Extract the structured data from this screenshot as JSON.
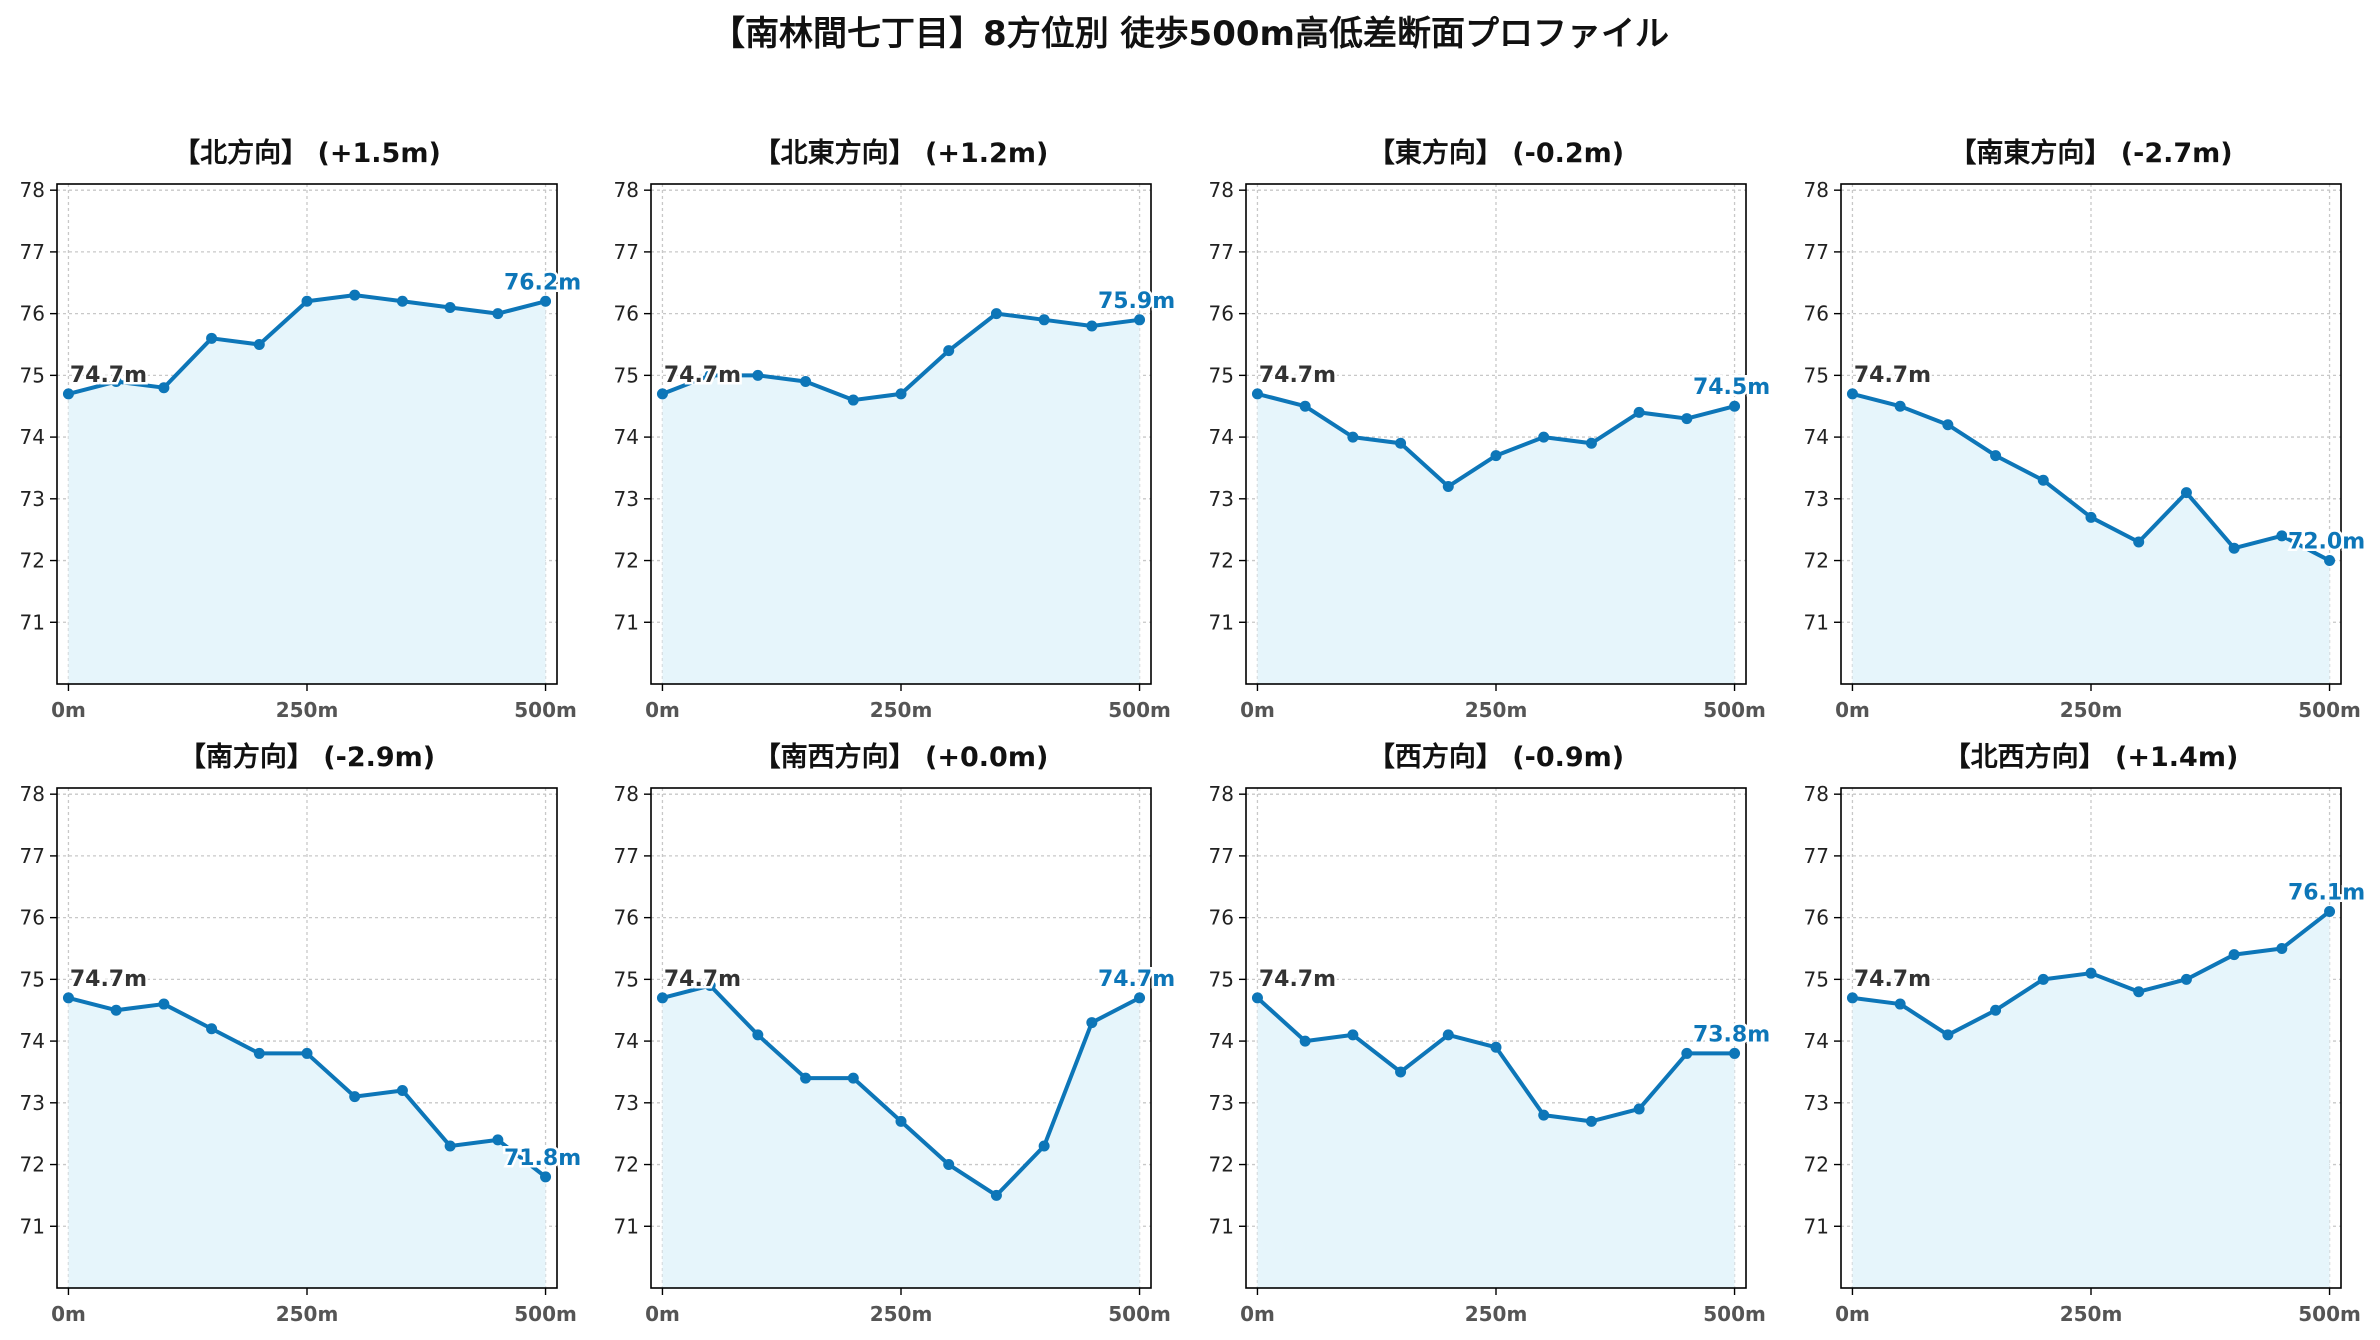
{
  "suptitle": "【南林間七丁目】8方位別 徒歩500m高低差断面プロファイル",
  "colors": {
    "line": "#0d76b8",
    "fill": "#e6f5fb",
    "grid": "#c8c8c8",
    "axis": "#000000",
    "tick_label": "#555555",
    "start_label": "#333333"
  },
  "chart_data": [
    {
      "type": "area",
      "title": "【北方向】 (+1.5m)",
      "x_ticks": [
        "0m",
        "250m",
        "500m"
      ],
      "y_ticks": [
        71,
        72,
        73,
        74,
        75,
        76,
        77,
        78
      ],
      "xlim": [
        -12,
        512
      ],
      "ylim": [
        70.0,
        78.1
      ],
      "grid": true,
      "x": [
        0,
        50,
        100,
        150,
        200,
        250,
        300,
        350,
        400,
        450,
        500
      ],
      "series": [
        {
          "values": [
            74.7,
            74.9,
            74.8,
            75.6,
            75.5,
            76.2,
            76.3,
            76.2,
            76.1,
            76.0,
            76.2
          ]
        }
      ],
      "start_label": "74.7m",
      "end_label": "76.2m"
    },
    {
      "type": "area",
      "title": "【北東方向】 (+1.2m)",
      "x_ticks": [
        "0m",
        "250m",
        "500m"
      ],
      "y_ticks": [
        71,
        72,
        73,
        74,
        75,
        76,
        77,
        78
      ],
      "xlim": [
        -12,
        512
      ],
      "ylim": [
        70.0,
        78.1
      ],
      "grid": true,
      "x": [
        0,
        50,
        100,
        150,
        200,
        250,
        300,
        350,
        400,
        450,
        500
      ],
      "series": [
        {
          "values": [
            74.7,
            75.0,
            75.0,
            74.9,
            74.6,
            74.7,
            75.4,
            76.0,
            75.9,
            75.8,
            75.9
          ]
        }
      ],
      "start_label": "74.7m",
      "end_label": "75.9m"
    },
    {
      "type": "area",
      "title": "【東方向】 (-0.2m)",
      "x_ticks": [
        "0m",
        "250m",
        "500m"
      ],
      "y_ticks": [
        71,
        72,
        73,
        74,
        75,
        76,
        77,
        78
      ],
      "xlim": [
        -12,
        512
      ],
      "ylim": [
        70.0,
        78.1
      ],
      "grid": true,
      "x": [
        0,
        50,
        100,
        150,
        200,
        250,
        300,
        350,
        400,
        450,
        500
      ],
      "series": [
        {
          "values": [
            74.7,
            74.5,
            74.0,
            73.9,
            73.2,
            73.7,
            74.0,
            73.9,
            74.4,
            74.3,
            74.5
          ]
        }
      ],
      "start_label": "74.7m",
      "end_label": "74.5m"
    },
    {
      "type": "area",
      "title": "【南東方向】 (-2.7m)",
      "x_ticks": [
        "0m",
        "250m",
        "500m"
      ],
      "y_ticks": [
        71,
        72,
        73,
        74,
        75,
        76,
        77,
        78
      ],
      "xlim": [
        -12,
        512
      ],
      "ylim": [
        70.0,
        78.1
      ],
      "grid": true,
      "x": [
        0,
        50,
        100,
        150,
        200,
        250,
        300,
        350,
        400,
        450,
        500
      ],
      "series": [
        {
          "values": [
            74.7,
            74.5,
            74.2,
            73.7,
            73.3,
            72.7,
            72.3,
            73.1,
            72.2,
            72.4,
            72.0
          ]
        }
      ],
      "start_label": "74.7m",
      "end_label": "72.0m"
    },
    {
      "type": "area",
      "title": "【南方向】 (-2.9m)",
      "x_ticks": [
        "0m",
        "250m",
        "500m"
      ],
      "y_ticks": [
        71,
        72,
        73,
        74,
        75,
        76,
        77,
        78
      ],
      "xlim": [
        -12,
        512
      ],
      "ylim": [
        70.0,
        78.1
      ],
      "grid": true,
      "x": [
        0,
        50,
        100,
        150,
        200,
        250,
        300,
        350,
        400,
        450,
        500
      ],
      "series": [
        {
          "values": [
            74.7,
            74.5,
            74.6,
            74.2,
            73.8,
            73.8,
            73.1,
            73.2,
            72.3,
            72.4,
            71.8
          ]
        }
      ],
      "start_label": "74.7m",
      "end_label": "71.8m"
    },
    {
      "type": "area",
      "title": "【南西方向】 (+0.0m)",
      "x_ticks": [
        "0m",
        "250m",
        "500m"
      ],
      "y_ticks": [
        71,
        72,
        73,
        74,
        75,
        76,
        77,
        78
      ],
      "xlim": [
        -12,
        512
      ],
      "ylim": [
        70.0,
        78.1
      ],
      "grid": true,
      "x": [
        0,
        50,
        100,
        150,
        200,
        250,
        300,
        350,
        400,
        450,
        500
      ],
      "series": [
        {
          "values": [
            74.7,
            74.9,
            74.1,
            73.4,
            73.4,
            72.7,
            72.0,
            71.5,
            72.3,
            74.3,
            74.7
          ]
        }
      ],
      "start_label": "74.7m",
      "end_label": "74.7m"
    },
    {
      "type": "area",
      "title": "【西方向】 (-0.9m)",
      "x_ticks": [
        "0m",
        "250m",
        "500m"
      ],
      "y_ticks": [
        71,
        72,
        73,
        74,
        75,
        76,
        77,
        78
      ],
      "xlim": [
        -12,
        512
      ],
      "ylim": [
        70.0,
        78.1
      ],
      "grid": true,
      "x": [
        0,
        50,
        100,
        150,
        200,
        250,
        300,
        350,
        400,
        450,
        500
      ],
      "series": [
        {
          "values": [
            74.7,
            74.0,
            74.1,
            73.5,
            74.1,
            73.9,
            72.8,
            72.7,
            72.9,
            73.8,
            73.8
          ]
        }
      ],
      "start_label": "74.7m",
      "end_label": "73.8m"
    },
    {
      "type": "area",
      "title": "【北西方向】 (+1.4m)",
      "x_ticks": [
        "0m",
        "250m",
        "500m"
      ],
      "y_ticks": [
        71,
        72,
        73,
        74,
        75,
        76,
        77,
        78
      ],
      "xlim": [
        -12,
        512
      ],
      "ylim": [
        70.0,
        78.1
      ],
      "grid": true,
      "x": [
        0,
        50,
        100,
        150,
        200,
        250,
        300,
        350,
        400,
        450,
        500
      ],
      "series": [
        {
          "values": [
            74.7,
            74.6,
            74.1,
            74.5,
            75.0,
            75.1,
            74.8,
            75.0,
            75.4,
            75.5,
            76.1
          ]
        }
      ],
      "start_label": "74.7m",
      "end_label": "76.1m"
    }
  ]
}
